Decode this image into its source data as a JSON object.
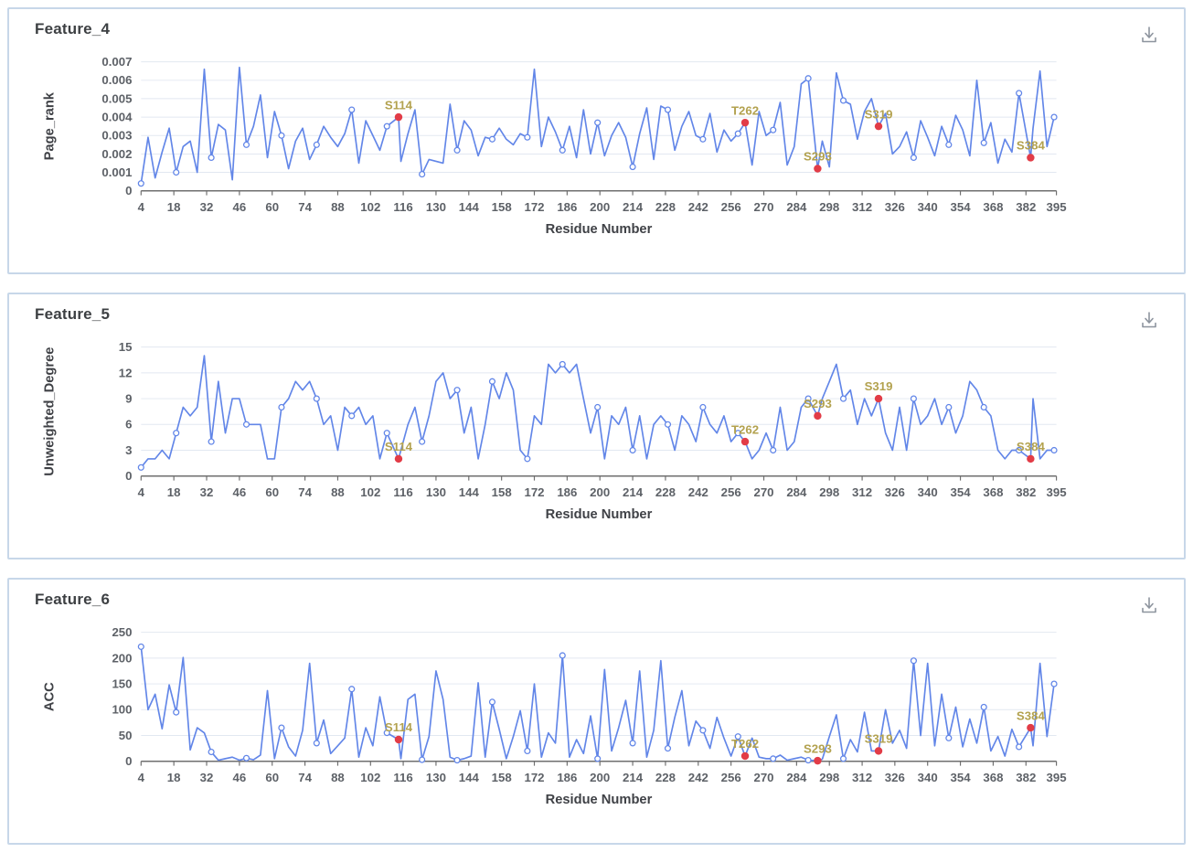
{
  "colors": {
    "line": "#6286e8",
    "marker_fill": "#ffffff",
    "annotation_dot": "#e23c47",
    "annotation_label": "#b3a24f",
    "grid": "#e2e8f1",
    "axis": "#6f6f6f",
    "tick_text": "#5d6167",
    "title_text": "#3f4146",
    "panel_border": "#c7d7e9",
    "icon": "#8d949e"
  },
  "icons": {
    "download": "download-icon"
  },
  "panels": [
    {
      "title": "Feature_4"
    },
    {
      "title": "Feature_5"
    },
    {
      "title": "Feature_6"
    }
  ],
  "chart_data": [
    {
      "type": "line",
      "title": "Feature_4",
      "xlabel": "Residue Number",
      "ylabel": "Page_rank",
      "xlim": [
        4,
        395
      ],
      "ylim": [
        0,
        0.007
      ],
      "grid": true,
      "xticks": [
        4,
        18,
        32,
        46,
        60,
        74,
        88,
        102,
        116,
        130,
        144,
        158,
        172,
        186,
        200,
        214,
        228,
        242,
        256,
        270,
        284,
        298,
        312,
        326,
        340,
        354,
        368,
        382,
        395
      ],
      "xtick_labels": [
        "4",
        "18",
        "32",
        "46",
        "60",
        "74",
        "88",
        "102",
        "116",
        "130",
        "144",
        "158",
        "172",
        "186",
        "200",
        "214",
        "228",
        "242",
        "256",
        "270",
        "284",
        "298",
        "312",
        "326",
        "340",
        "354",
        "368",
        "382",
        "395"
      ],
      "yticks": [
        0,
        0.001,
        0.002,
        0.003,
        0.004,
        0.005,
        0.006,
        0.007
      ],
      "ytick_labels": [
        "0",
        "0.001",
        "0.002",
        "0.003",
        "0.004",
        "0.005",
        "0.006",
        "0.007"
      ],
      "x": [
        4,
        7,
        10,
        13,
        16,
        19,
        22,
        25,
        28,
        31,
        34,
        37,
        40,
        43,
        46,
        49,
        52,
        55,
        58,
        61,
        64,
        67,
        70,
        73,
        76,
        79,
        82,
        85,
        88,
        91,
        94,
        97,
        100,
        103,
        106,
        109,
        114,
        115,
        118,
        121,
        124,
        127,
        130,
        133,
        136,
        139,
        142,
        145,
        148,
        151,
        154,
        157,
        160,
        163,
        166,
        169,
        172,
        175,
        178,
        181,
        184,
        187,
        190,
        193,
        196,
        199,
        202,
        205,
        208,
        211,
        214,
        217,
        220,
        223,
        226,
        229,
        232,
        235,
        238,
        241,
        244,
        247,
        250,
        253,
        256,
        259,
        262,
        265,
        268,
        271,
        274,
        277,
        280,
        283,
        286,
        289,
        293,
        295,
        298,
        301,
        304,
        307,
        310,
        313,
        316,
        319,
        322,
        325,
        328,
        331,
        334,
        337,
        340,
        343,
        346,
        349,
        352,
        355,
        358,
        361,
        364,
        367,
        370,
        373,
        376,
        379,
        384,
        385,
        388,
        391,
        394
      ],
      "y": [
        0.0004,
        0.0029,
        0.0007,
        0.0021,
        0.0034,
        0.001,
        0.0024,
        0.0027,
        0.001,
        0.0066,
        0.0018,
        0.0036,
        0.0033,
        0.0006,
        0.0067,
        0.0025,
        0.0035,
        0.0052,
        0.0018,
        0.0043,
        0.003,
        0.0012,
        0.0027,
        0.0034,
        0.0017,
        0.0025,
        0.0035,
        0.0029,
        0.0024,
        0.0031,
        0.0044,
        0.0015,
        0.0038,
        0.003,
        0.0022,
        0.0035,
        0.004,
        0.0016,
        0.0031,
        0.0044,
        0.0009,
        0.0017,
        0.0016,
        0.0015,
        0.0047,
        0.0022,
        0.0038,
        0.0033,
        0.0019,
        0.0029,
        0.0028,
        0.0034,
        0.0028,
        0.0025,
        0.0031,
        0.0029,
        0.0066,
        0.0024,
        0.004,
        0.0032,
        0.0022,
        0.0035,
        0.0018,
        0.0044,
        0.002,
        0.0037,
        0.0019,
        0.003,
        0.0037,
        0.0029,
        0.0013,
        0.0031,
        0.0045,
        0.0017,
        0.0046,
        0.0044,
        0.0022,
        0.0035,
        0.0043,
        0.003,
        0.0028,
        0.0042,
        0.0021,
        0.0033,
        0.0027,
        0.0031,
        0.0037,
        0.0014,
        0.0043,
        0.003,
        0.0033,
        0.0048,
        0.0014,
        0.0024,
        0.0058,
        0.0061,
        0.0012,
        0.0027,
        0.0013,
        0.0064,
        0.0049,
        0.0047,
        0.0028,
        0.0043,
        0.005,
        0.0035,
        0.0042,
        0.002,
        0.0024,
        0.0032,
        0.0018,
        0.0038,
        0.0029,
        0.0019,
        0.0035,
        0.0025,
        0.0041,
        0.0033,
        0.0019,
        0.006,
        0.0026,
        0.0037,
        0.0015,
        0.0028,
        0.0021,
        0.0053,
        0.0018,
        0.0034,
        0.0065,
        0.0024,
        0.004
      ],
      "annotations": [
        {
          "label": "S114",
          "x": 114,
          "y": 0.004
        },
        {
          "label": "T262",
          "x": 262,
          "y": 0.0037
        },
        {
          "label": "S293",
          "x": 293,
          "y": 0.0012
        },
        {
          "label": "S319",
          "x": 319,
          "y": 0.0035
        },
        {
          "label": "S384",
          "x": 384,
          "y": 0.0018
        }
      ]
    },
    {
      "type": "line",
      "title": "Feature_5",
      "xlabel": "Residue Number",
      "ylabel": "Unweighted_Degree",
      "xlim": [
        4,
        395
      ],
      "ylim": [
        0,
        15
      ],
      "grid": true,
      "xticks": [
        4,
        18,
        32,
        46,
        60,
        74,
        88,
        102,
        116,
        130,
        144,
        158,
        172,
        186,
        200,
        214,
        228,
        242,
        256,
        270,
        284,
        298,
        312,
        326,
        340,
        354,
        368,
        382,
        395
      ],
      "xtick_labels": [
        "4",
        "18",
        "32",
        "46",
        "60",
        "74",
        "88",
        "102",
        "116",
        "130",
        "144",
        "158",
        "172",
        "186",
        "200",
        "214",
        "228",
        "242",
        "256",
        "270",
        "284",
        "298",
        "312",
        "326",
        "340",
        "354",
        "368",
        "382",
        "395"
      ],
      "yticks": [
        0,
        3,
        6,
        9,
        12,
        15
      ],
      "ytick_labels": [
        "0",
        "3",
        "6",
        "9",
        "12",
        "15"
      ],
      "x": [
        4,
        7,
        10,
        13,
        16,
        19,
        22,
        25,
        28,
        31,
        34,
        37,
        40,
        43,
        46,
        49,
        52,
        55,
        58,
        61,
        64,
        67,
        70,
        73,
        76,
        79,
        82,
        85,
        88,
        91,
        94,
        97,
        100,
        103,
        106,
        109,
        114,
        115,
        118,
        121,
        124,
        127,
        130,
        133,
        136,
        139,
        142,
        145,
        148,
        151,
        154,
        157,
        160,
        163,
        166,
        169,
        172,
        175,
        178,
        181,
        184,
        187,
        190,
        193,
        196,
        199,
        202,
        205,
        208,
        211,
        214,
        217,
        220,
        223,
        226,
        229,
        232,
        235,
        238,
        241,
        244,
        247,
        250,
        253,
        256,
        259,
        262,
        265,
        268,
        271,
        274,
        277,
        280,
        283,
        286,
        289,
        293,
        295,
        298,
        301,
        304,
        307,
        310,
        313,
        316,
        319,
        322,
        325,
        328,
        331,
        334,
        337,
        340,
        343,
        346,
        349,
        352,
        355,
        358,
        361,
        364,
        367,
        370,
        373,
        376,
        379,
        384,
        385,
        388,
        391,
        394
      ],
      "y": [
        1,
        2,
        2,
        3,
        2,
        5,
        8,
        7,
        8,
        14,
        4,
        11,
        5,
        9,
        9,
        6,
        6,
        6,
        2,
        2,
        8,
        9,
        11,
        10,
        11,
        9,
        6,
        7,
        3,
        8,
        7,
        8,
        6,
        7,
        2,
        5,
        2,
        3,
        6,
        8,
        4,
        7,
        11,
        12,
        9,
        10,
        5,
        8,
        2,
        6,
        11,
        9,
        12,
        10,
        3,
        2,
        7,
        6,
        13,
        12,
        13,
        12,
        13,
        9,
        5,
        8,
        2,
        7,
        6,
        8,
        3,
        7,
        2,
        6,
        7,
        6,
        3,
        7,
        6,
        4,
        8,
        6,
        5,
        7,
        4,
        5,
        4,
        2,
        3,
        5,
        3,
        8,
        3,
        4,
        8,
        9,
        7,
        9,
        11,
        13,
        9,
        10,
        6,
        9,
        7,
        9,
        5,
        3,
        8,
        3,
        9,
        6,
        7,
        9,
        6,
        8,
        5,
        7,
        11,
        10,
        8,
        7,
        3,
        2,
        3,
        3,
        2,
        9,
        2,
        3,
        3
      ],
      "annotations": [
        {
          "label": "S114",
          "x": 114,
          "y": 2
        },
        {
          "label": "T262",
          "x": 262,
          "y": 4
        },
        {
          "label": "S293",
          "x": 293,
          "y": 7
        },
        {
          "label": "S319",
          "x": 319,
          "y": 9
        },
        {
          "label": "S384",
          "x": 384,
          "y": 2
        }
      ]
    },
    {
      "type": "line",
      "title": "Feature_6",
      "xlabel": "Residue Number",
      "ylabel": "ACC",
      "xlim": [
        4,
        395
      ],
      "ylim": [
        0,
        250
      ],
      "grid": true,
      "xticks": [
        4,
        18,
        32,
        46,
        60,
        74,
        88,
        102,
        116,
        130,
        144,
        158,
        172,
        186,
        200,
        214,
        228,
        242,
        256,
        270,
        284,
        298,
        312,
        326,
        340,
        354,
        368,
        382,
        395
      ],
      "xtick_labels": [
        "4",
        "18",
        "32",
        "46",
        "60",
        "74",
        "88",
        "102",
        "116",
        "130",
        "144",
        "158",
        "172",
        "186",
        "200",
        "214",
        "228",
        "242",
        "256",
        "270",
        "284",
        "298",
        "312",
        "326",
        "340",
        "354",
        "368",
        "382",
        "395"
      ],
      "yticks": [
        0,
        50,
        100,
        150,
        200,
        250
      ],
      "ytick_labels": [
        "0",
        "50",
        "100",
        "150",
        "200",
        "250"
      ],
      "x": [
        4,
        7,
        10,
        13,
        16,
        19,
        22,
        25,
        28,
        31,
        34,
        37,
        40,
        43,
        46,
        49,
        52,
        55,
        58,
        61,
        64,
        67,
        70,
        73,
        76,
        79,
        82,
        85,
        88,
        91,
        94,
        97,
        100,
        103,
        106,
        109,
        114,
        115,
        118,
        121,
        124,
        127,
        130,
        133,
        136,
        139,
        142,
        145,
        148,
        151,
        154,
        157,
        160,
        163,
        166,
        169,
        172,
        175,
        178,
        181,
        184,
        187,
        190,
        193,
        196,
        199,
        202,
        205,
        208,
        211,
        214,
        217,
        220,
        223,
        226,
        229,
        232,
        235,
        238,
        241,
        244,
        247,
        250,
        253,
        256,
        259,
        262,
        265,
        268,
        271,
        274,
        277,
        280,
        283,
        286,
        289,
        293,
        295,
        298,
        301,
        304,
        307,
        310,
        313,
        316,
        319,
        322,
        325,
        328,
        331,
        334,
        337,
        340,
        343,
        346,
        349,
        352,
        355,
        358,
        361,
        364,
        367,
        370,
        373,
        376,
        379,
        384,
        385,
        388,
        391,
        394
      ],
      "y": [
        222,
        100,
        130,
        63,
        148,
        95,
        201,
        22,
        65,
        55,
        18,
        2,
        5,
        8,
        2,
        6,
        3,
        12,
        137,
        5,
        65,
        28,
        10,
        60,
        190,
        35,
        80,
        15,
        30,
        45,
        140,
        8,
        65,
        30,
        125,
        55,
        42,
        5,
        120,
        130,
        3,
        48,
        175,
        120,
        8,
        2,
        5,
        10,
        152,
        8,
        115,
        62,
        5,
        48,
        98,
        20,
        150,
        8,
        55,
        35,
        205,
        8,
        42,
        15,
        88,
        5,
        178,
        20,
        65,
        118,
        35,
        175,
        8,
        60,
        195,
        25,
        85,
        137,
        30,
        78,
        60,
        25,
        85,
        45,
        10,
        48,
        10,
        45,
        8,
        5,
        5,
        12,
        2,
        5,
        8,
        2,
        1,
        4,
        48,
        90,
        5,
        42,
        18,
        95,
        20,
        20,
        100,
        35,
        60,
        25,
        195,
        50,
        190,
        30,
        130,
        45,
        105,
        28,
        82,
        35,
        105,
        20,
        48,
        10,
        62,
        28,
        65,
        30,
        190,
        48,
        150
      ],
      "annotations": [
        {
          "label": "S114",
          "x": 114,
          "y": 42
        },
        {
          "label": "T262",
          "x": 262,
          "y": 10
        },
        {
          "label": "S293",
          "x": 293,
          "y": 1
        },
        {
          "label": "S319",
          "x": 319,
          "y": 20
        },
        {
          "label": "S384",
          "x": 384,
          "y": 65
        }
      ]
    }
  ]
}
